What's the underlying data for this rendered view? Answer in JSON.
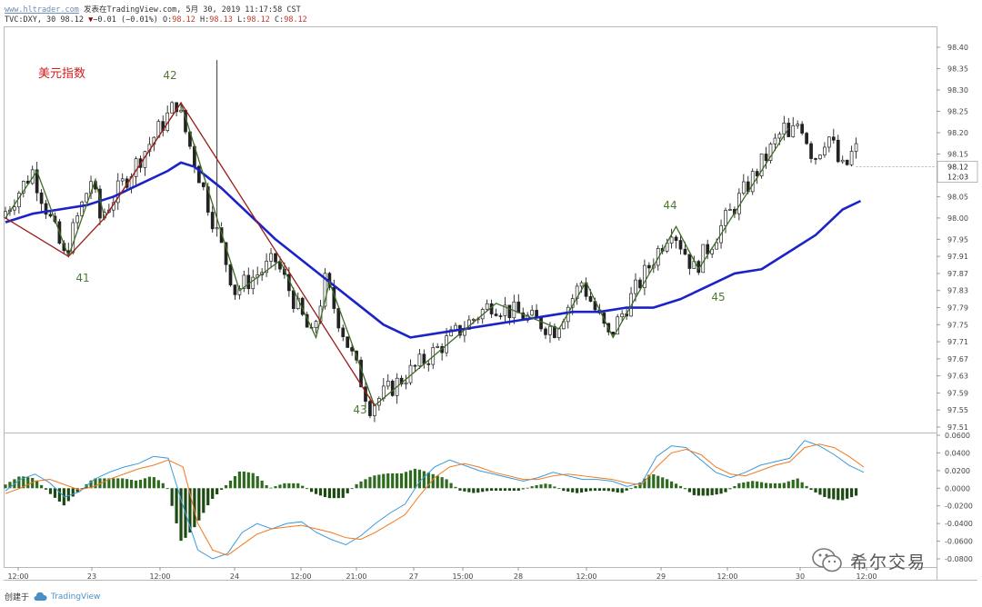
{
  "header": {
    "site": "www.hltrader.com",
    "published": "发表在TradingView.com, 5月 30, 2019 11:17:58 CST",
    "symbol_line": "TVC:DXY, 30",
    "last": "98.12",
    "change": "−0.01 (−0.01%)",
    "o_label": "O:",
    "o": "98.12",
    "h_label": "H:",
    "h": "98.13",
    "l_label": "L:",
    "l": "98.12",
    "c_label": "C:",
    "c": "98.12"
  },
  "footer": {
    "created": "创建于",
    "brand": "TradingView"
  },
  "watermark": {
    "text": "希尔交易"
  },
  "chart_data": [
    {
      "type": "candlestick",
      "title": "美元指数",
      "ylim": [
        97.51,
        98.43
      ],
      "y_ticks": [
        "98.40",
        "98.35",
        "98.30",
        "98.25",
        "98.20",
        "98.15",
        "98.12",
        "98.05",
        "98.00",
        "97.95",
        "97.91",
        "97.87",
        "97.83",
        "97.79",
        "97.75",
        "97.71",
        "97.67",
        "97.63",
        "97.59",
        "97.55",
        "97.51"
      ],
      "current_price": "98.12",
      "countdown": "12:03",
      "x_ticks": [
        "12:00",
        "23",
        "12:00",
        "24",
        "12:00",
        "21:00",
        "27",
        "15:00",
        "28",
        "12:00",
        "29",
        "12:00",
        "30",
        "12:00"
      ],
      "wave_labels": [
        "41",
        "42",
        "43",
        "44",
        "45"
      ],
      "moving_average": {
        "x": [
          0,
          6,
          12,
          18,
          24,
          30,
          36,
          39,
          42,
          48,
          54,
          60,
          66,
          72,
          78,
          84,
          90,
          96,
          102,
          108,
          114,
          120,
          126,
          132,
          138,
          144,
          150,
          156,
          162,
          168,
          174,
          180,
          186,
          190
        ],
        "y": [
          97.99,
          98.01,
          98.02,
          98.03,
          98.05,
          98.08,
          98.11,
          98.13,
          98.12,
          98.07,
          98.01,
          97.95,
          97.9,
          97.85,
          97.8,
          97.75,
          97.72,
          97.73,
          97.74,
          97.75,
          97.76,
          97.77,
          97.78,
          97.78,
          97.79,
          97.79,
          97.81,
          97.84,
          97.87,
          97.88,
          97.92,
          97.96,
          98.02,
          98.04
        ]
      },
      "zigzag_up": [
        [
          0,
          98.0
        ],
        [
          7,
          98.11
        ],
        [
          14,
          97.91
        ],
        [
          20,
          98.09
        ],
        [
          22,
          98.0
        ],
        [
          39,
          98.27
        ],
        [
          52,
          97.83
        ],
        [
          61,
          97.9
        ],
        [
          69,
          97.72
        ],
        [
          72,
          97.85
        ],
        [
          82,
          97.56
        ],
        [
          109,
          97.8
        ],
        [
          123,
          97.74
        ],
        [
          129,
          97.85
        ],
        [
          135,
          97.72
        ],
        [
          149,
          97.98
        ],
        [
          154,
          97.88
        ],
        [
          174,
          98.21
        ]
      ],
      "zigzag_down": [
        [
          0,
          98.0
        ],
        [
          14,
          97.91
        ],
        [
          22,
          98.0
        ],
        [
          39,
          98.27
        ],
        [
          82,
          97.56
        ]
      ]
    },
    {
      "type": "line",
      "title": "MACD",
      "ylim": [
        -0.08,
        0.06
      ],
      "y_ticks": [
        "0.0600",
        "0.0400",
        "0.0200",
        "0.0000",
        "-0.0200",
        "-0.0400",
        "-0.0600",
        "-0.0800"
      ],
      "series": [
        {
          "values": [
            -0.003,
            0.01,
            0.016,
            0.006,
            -0.01,
            -0.004,
            0.01,
            0.018,
            0.024,
            0.028,
            0.036,
            0.034,
            -0.02,
            -0.07,
            -0.08,
            -0.074,
            -0.05,
            -0.04,
            -0.046,
            -0.04,
            -0.038,
            -0.05,
            -0.058,
            -0.064,
            -0.054,
            -0.04,
            -0.028,
            -0.018,
            0.008,
            0.024,
            0.032,
            0.026,
            0.02,
            0.016,
            0.012,
            0.008,
            0.012,
            0.018,
            0.014,
            0.01,
            0.01,
            0.008,
            0.002,
            0.006,
            0.036,
            0.048,
            0.046,
            0.032,
            0.018,
            0.012,
            0.018,
            0.026,
            0.03,
            0.034,
            0.054,
            0.048,
            0.038,
            0.026,
            0.018
          ]
        },
        {
          "values": [
            -0.006,
            0.0,
            0.008,
            0.01,
            0.004,
            -0.002,
            0.002,
            0.01,
            0.016,
            0.022,
            0.026,
            0.032,
            0.024,
            -0.04,
            -0.07,
            -0.076,
            -0.064,
            -0.052,
            -0.046,
            -0.044,
            -0.042,
            -0.046,
            -0.05,
            -0.056,
            -0.058,
            -0.05,
            -0.04,
            -0.03,
            -0.008,
            0.012,
            0.024,
            0.028,
            0.024,
            0.018,
            0.014,
            0.01,
            0.01,
            0.014,
            0.016,
            0.014,
            0.012,
            0.01,
            0.006,
            0.004,
            0.024,
            0.04,
            0.044,
            0.038,
            0.024,
            0.016,
            0.014,
            0.02,
            0.026,
            0.03,
            0.046,
            0.05,
            0.046,
            0.036,
            0.024
          ]
        }
      ]
    }
  ]
}
